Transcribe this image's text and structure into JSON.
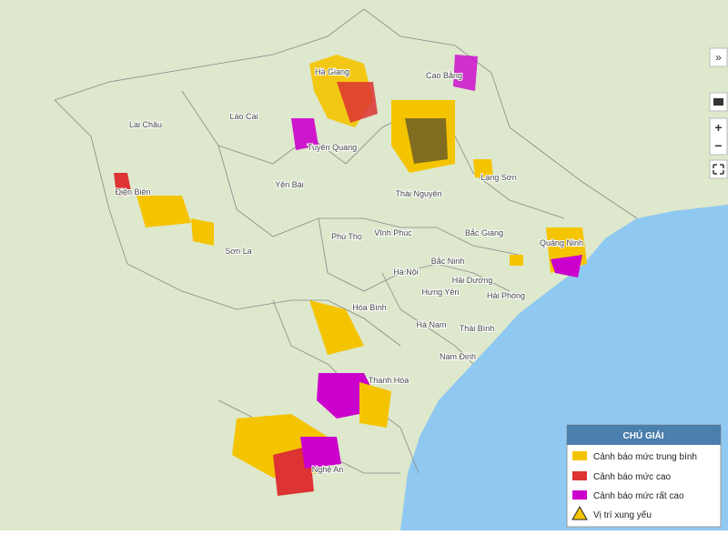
{
  "provinces": [
    "Lai Châu",
    "Lào Cai",
    "Hà Giang",
    "Cao Bằng",
    "Tuyên Quang",
    "Yên Bái",
    "Điện Biên",
    "Thái Nguyên",
    "Lạng Sơn",
    "Sơn La",
    "Phú Thọ",
    "Vĩnh Phúc",
    "Bắc Giang",
    "Quảng Ninh",
    "Bắc Ninh",
    "Hà Nội",
    "Hải Dương",
    "Hưng Yên",
    "Hải Phòng",
    "Hòa Bình",
    "Hà Nam",
    "Thái Bình",
    "Nam Định",
    "Thanh Hóa",
    "Nghệ An"
  ],
  "legend": {
    "title": "CHÚ GIẢI",
    "items": [
      "Cảnh báo mức trung bình",
      "Cảnh báo mức cao",
      "Cảnh báo mức rất cao",
      "Vị trí xung yếu"
    ]
  },
  "controls": [
    "»",
    "+",
    "−"
  ]
}
